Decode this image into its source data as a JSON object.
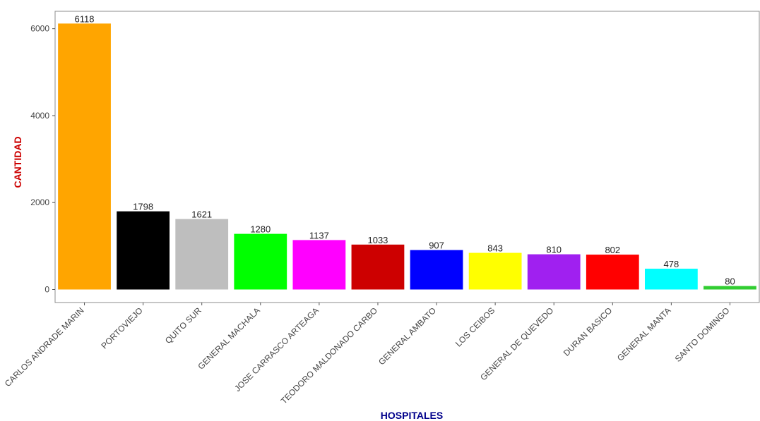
{
  "chart_data": {
    "type": "bar",
    "categories": [
      "CARLOS ANDRADE MARIN",
      "PORTOVIEJO",
      "QUITO SUR",
      "GENERAL MACHALA",
      "JOSE CARRASCO ARTEAGA",
      "TEODORO MALDONADO CARBO",
      "GENERAL AMBATO",
      "LOS CEIBOS",
      "GENERAL DE QUEVEDO",
      "DURAN BASICO",
      "GENERAL MANTA",
      "SANTO DOMINGO"
    ],
    "values": [
      6118,
      1798,
      1621,
      1280,
      1137,
      1033,
      907,
      843,
      810,
      802,
      478,
      80
    ],
    "colors": [
      "#FFA500",
      "#000000",
      "#BEBEBE",
      "#00FF00",
      "#FF00FF",
      "#CD0000",
      "#0000FF",
      "#FFFF00",
      "#A020F0",
      "#FF0000",
      "#00FFFF",
      "#32CD32"
    ],
    "xlabel": "HOSPITALES",
    "ylabel": "CANTIDAD",
    "xlabel_color": "#00008B",
    "ylabel_color": "#CC0000",
    "ylim": [
      -300,
      6400
    ],
    "yticks": [
      0,
      2000,
      4000,
      6000
    ],
    "grid": false,
    "legend": "none",
    "data_labels": true
  }
}
